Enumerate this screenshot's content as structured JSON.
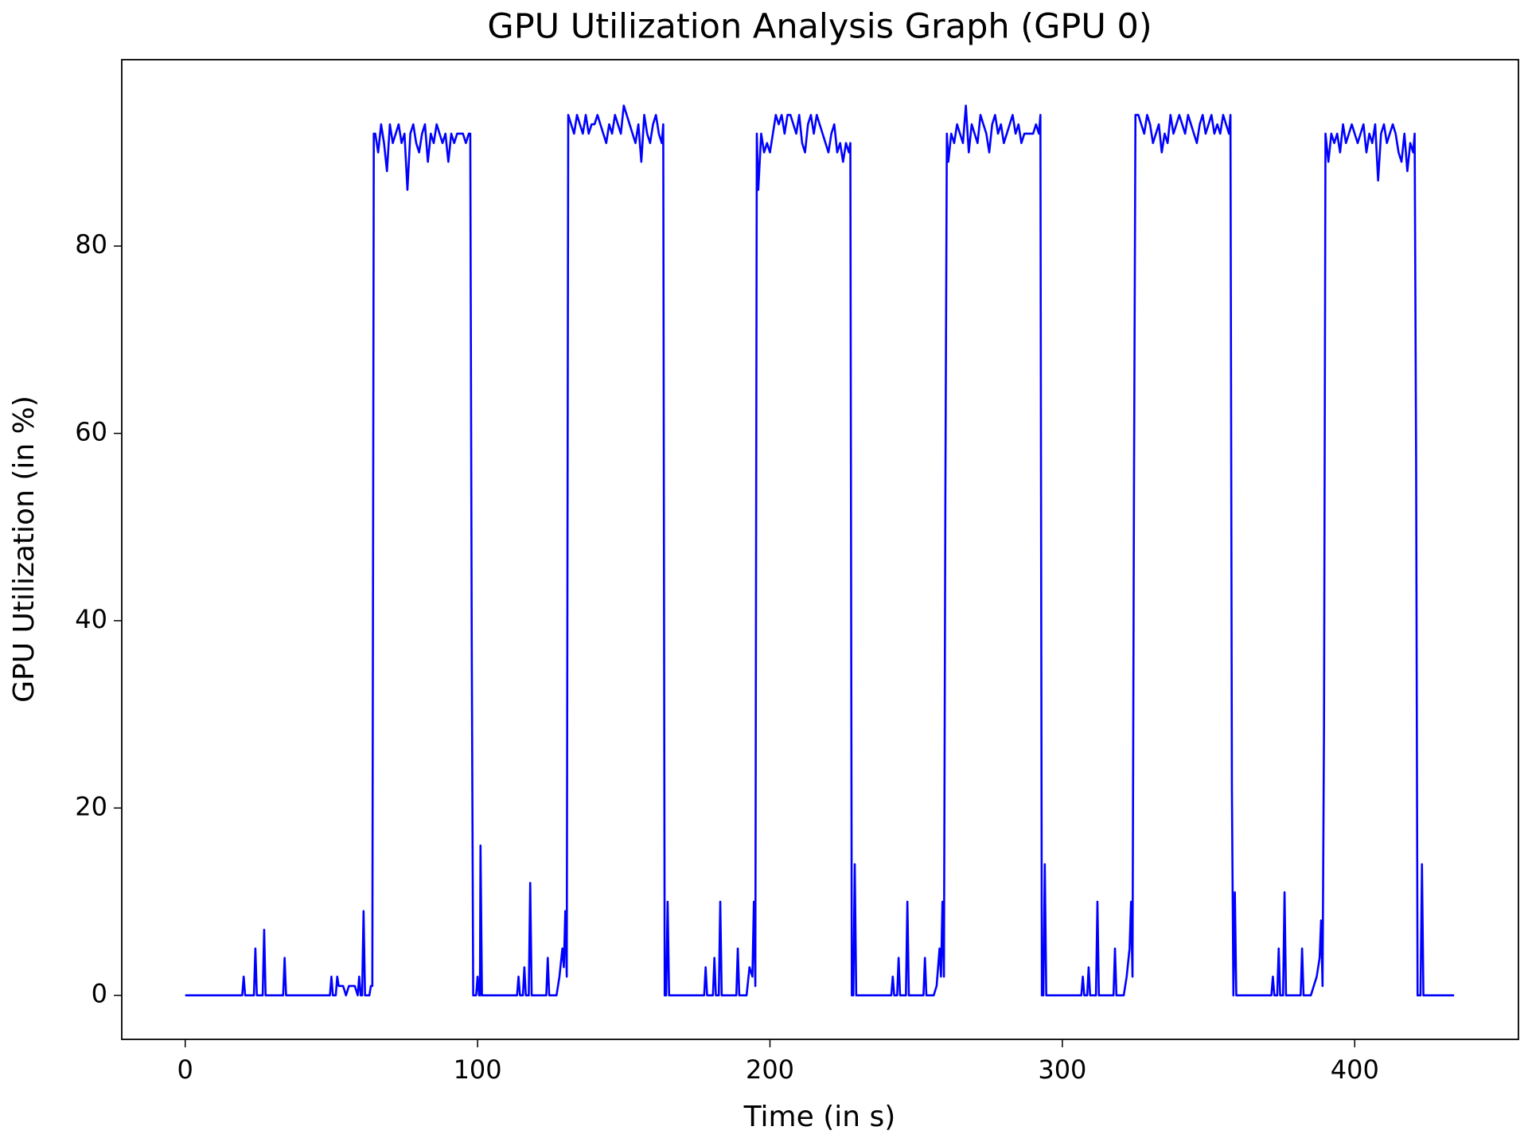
{
  "chart_data": {
    "type": "line",
    "title": "GPU Utilization Analysis Graph (GPU 0)",
    "x_label": "Time (in s)",
    "y_label": "GPU Utilization (in %)",
    "color": "#0000ff",
    "grid": false,
    "xlim": [
      -21.7,
      456
    ],
    "ylim": [
      -4.7,
      99.9
    ],
    "xticks": [
      0,
      100,
      200,
      300,
      400
    ],
    "yticks": [
      0,
      20,
      40,
      60,
      80
    ],
    "x": [
      0,
      19.5,
      20,
      20.5,
      23.5,
      24,
      24.5,
      26.5,
      27,
      27.5,
      33.5,
      34,
      34.5,
      49.5,
      50,
      50.5,
      51.5,
      52,
      52.5,
      54,
      55,
      56,
      58,
      59,
      59.5,
      60,
      60.5,
      61,
      61.5,
      63,
      63.5,
      64,
      64.5,
      65,
      66,
      67,
      68,
      69,
      70,
      71,
      72,
      73,
      74,
      75,
      76,
      77,
      78,
      79,
      80,
      81,
      82,
      83,
      84,
      85,
      86,
      87,
      88,
      89,
      90,
      91,
      92,
      93,
      94,
      95,
      96,
      97,
      97.5,
      98,
      98.5,
      99.5,
      100,
      100.5,
      100.8,
      101,
      101.5,
      113.5,
      114,
      114.5,
      115.5,
      116,
      116.5,
      117.5,
      118,
      118.5,
      123.5,
      124,
      124.5,
      127,
      128,
      129,
      129.5,
      130,
      130.5,
      131,
      132,
      133,
      134,
      135,
      136,
      137,
      138,
      139,
      140,
      141,
      142,
      143,
      144,
      145,
      146,
      147,
      148,
      149,
      150,
      151,
      152,
      153,
      154,
      155,
      156,
      157,
      158,
      159,
      160,
      161,
      162,
      163,
      163.5,
      164,
      164.5,
      165,
      165.5,
      177.5,
      178,
      178.5,
      180.5,
      181,
      181.5,
      182.5,
      183,
      183.5,
      188.5,
      189,
      189.5,
      192,
      193,
      194,
      194.5,
      195,
      195.5,
      196,
      197,
      198,
      199,
      200,
      201,
      202,
      203,
      204,
      205,
      206,
      207,
      208,
      209,
      210,
      211,
      212,
      213,
      214,
      215,
      216,
      217,
      218,
      219,
      220,
      221,
      222,
      223,
      224,
      225,
      226,
      227,
      227.5,
      228,
      228.5,
      229,
      229.5,
      241.5,
      242,
      242.5,
      243.5,
      244,
      244.5,
      246.5,
      247,
      247.5,
      252.5,
      253,
      253.5,
      256,
      257,
      258,
      258.5,
      259,
      259.5,
      260,
      260.5,
      261,
      262,
      263,
      264,
      265,
      266,
      267,
      268,
      269,
      270,
      271,
      272,
      273,
      274,
      275,
      276,
      277,
      278,
      279,
      280,
      281,
      282,
      283,
      284,
      285,
      286,
      287,
      288,
      289,
      290,
      291,
      292,
      292.5,
      293,
      293.5,
      294,
      294.5,
      306.5,
      307,
      307.5,
      308.5,
      309,
      309.5,
      311.5,
      312,
      312.5,
      317.5,
      318,
      318.5,
      321,
      322,
      323,
      323.5,
      324,
      324.5,
      325,
      326,
      327,
      328,
      329,
      330,
      331,
      332,
      333,
      334,
      335,
      336,
      337,
      338,
      339,
      340,
      341,
      342,
      343,
      344,
      345,
      346,
      347,
      348,
      349,
      350,
      351,
      352,
      353,
      354,
      355,
      356,
      357,
      357.5,
      358,
      358.5,
      359,
      359.5,
      371.5,
      372,
      372.5,
      373.5,
      374,
      374.5,
      375.5,
      376,
      376.5,
      381.5,
      382,
      382.5,
      385,
      386,
      387,
      388,
      388.5,
      389,
      389.5,
      390,
      391,
      392,
      393,
      394,
      395,
      396,
      397,
      398,
      399,
      400,
      401,
      402,
      403,
      404,
      405,
      406,
      407,
      408,
      409,
      410,
      411,
      412,
      413,
      414,
      415,
      416,
      417,
      418,
      419,
      420,
      420.5,
      421,
      421.5,
      422.5,
      423,
      423.5,
      434
    ],
    "values": [
      0,
      0,
      2,
      0,
      0,
      5,
      0,
      0,
      7,
      0,
      0,
      4,
      0,
      0,
      2,
      0,
      0,
      2,
      1,
      1,
      0,
      1,
      1,
      0,
      2,
      0,
      0,
      9,
      0,
      0,
      1,
      1,
      92,
      92,
      90,
      93,
      91,
      88,
      93,
      91,
      92,
      93,
      91,
      92,
      86,
      92,
      93,
      91,
      90,
      92,
      93,
      89,
      92,
      91,
      93,
      92,
      91,
      92,
      89,
      92,
      91,
      92,
      92,
      92,
      91,
      92,
      92,
      38,
      0,
      0,
      2,
      0,
      0,
      16,
      0,
      0,
      2,
      0,
      0,
      3,
      0,
      0,
      12,
      0,
      0,
      4,
      0,
      0,
      2,
      5,
      3,
      9,
      2,
      94,
      93,
      92,
      94,
      93,
      92,
      94,
      92,
      93,
      93,
      94,
      93,
      92,
      91,
      93,
      92,
      94,
      93,
      92,
      95,
      94,
      93,
      92,
      91,
      93,
      89,
      94,
      92,
      91,
      93,
      94,
      92,
      91,
      93,
      0,
      0,
      10,
      0,
      0,
      3,
      0,
      0,
      4,
      0,
      0,
      10,
      0,
      0,
      5,
      0,
      0,
      3,
      2,
      10,
      1,
      92,
      86,
      92,
      90,
      91,
      90,
      92,
      94,
      93,
      94,
      92,
      94,
      94,
      93,
      92,
      94,
      91,
      90,
      93,
      94,
      92,
      94,
      93,
      92,
      91,
      90,
      92,
      93,
      90,
      91,
      89,
      91,
      90,
      91,
      0,
      0,
      14,
      0,
      0,
      2,
      0,
      0,
      4,
      0,
      0,
      10,
      0,
      0,
      4,
      0,
      0,
      1,
      5,
      2,
      10,
      2,
      54,
      92,
      89,
      92,
      91,
      93,
      92,
      91,
      95,
      90,
      93,
      92,
      91,
      94,
      93,
      92,
      90,
      93,
      94,
      92,
      93,
      91,
      92,
      93,
      94,
      92,
      93,
      91,
      92,
      92,
      92,
      92,
      93,
      92,
      94,
      0,
      0,
      14,
      0,
      0,
      2,
      0,
      0,
      3,
      0,
      0,
      10,
      0,
      0,
      5,
      0,
      0,
      2,
      5,
      10,
      2,
      54,
      94,
      94,
      93,
      92,
      94,
      93,
      91,
      92,
      93,
      90,
      92,
      91,
      94,
      92,
      93,
      94,
      93,
      92,
      94,
      93,
      92,
      91,
      93,
      94,
      92,
      93,
      94,
      92,
      93,
      92,
      94,
      93,
      92,
      94,
      22,
      0,
      11,
      0,
      0,
      2,
      0,
      0,
      5,
      0,
      0,
      11,
      0,
      0,
      5,
      0,
      0,
      1,
      2,
      4,
      8,
      1,
      29,
      92,
      89,
      92,
      91,
      92,
      90,
      93,
      91,
      92,
      93,
      92,
      91,
      92,
      93,
      90,
      92,
      91,
      93,
      87,
      92,
      93,
      91,
      92,
      93,
      92,
      90,
      89,
      92,
      88,
      91,
      90,
      92,
      57,
      0,
      0,
      14,
      0,
      0
    ]
  }
}
